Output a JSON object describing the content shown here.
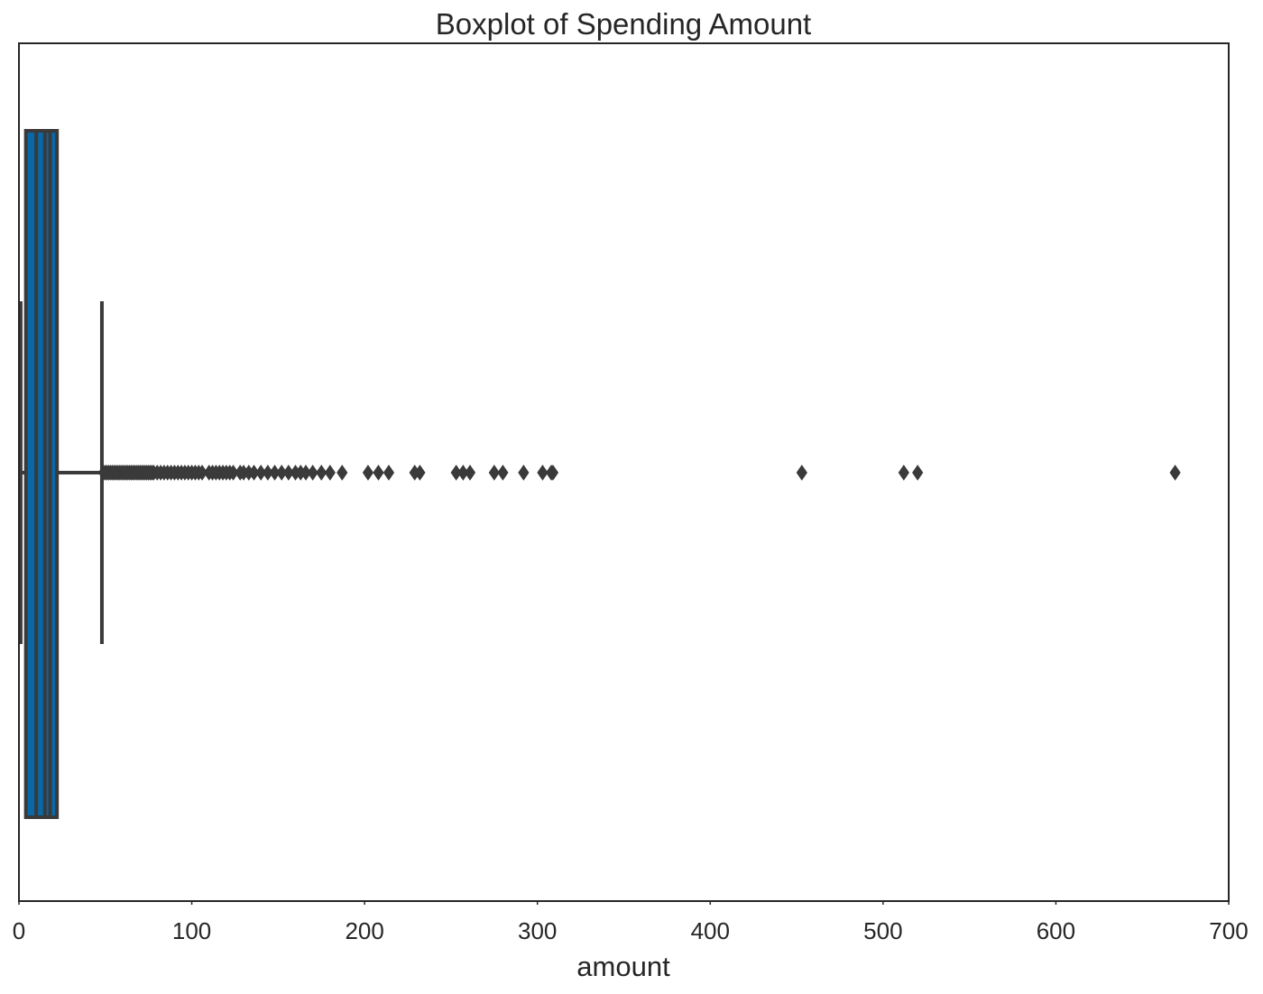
{
  "chart_data": {
    "type": "boxplot",
    "orientation": "horizontal",
    "title": "Boxplot of Spending Amount",
    "xlabel": "amount",
    "ylabel": "",
    "xlim": [
      0,
      700
    ],
    "xticks": [
      0,
      100,
      200,
      300,
      400,
      500,
      600,
      700
    ],
    "xtick_labels": [
      "0",
      "100",
      "200",
      "300",
      "400",
      "500",
      "600",
      "700"
    ],
    "grid": false,
    "box_color": "#0868a8",
    "line_color": "#3a3a3a",
    "box": {
      "min": 1,
      "q1": 4,
      "median": 15,
      "q3": 22,
      "whisker_low": 1,
      "whisker_high": 48,
      "inner_lines": [
        10,
        18
      ]
    },
    "outliers": [
      49,
      50,
      51,
      52,
      53,
      54,
      55,
      56,
      57,
      58,
      59,
      60,
      61,
      62,
      63,
      64,
      65,
      66,
      67,
      68,
      69,
      70,
      71,
      72,
      73,
      74,
      75,
      76,
      77,
      78,
      80,
      82,
      84,
      86,
      88,
      90,
      92,
      94,
      96,
      98,
      100,
      102,
      104,
      106,
      110,
      112,
      114,
      116,
      118,
      120,
      122,
      124,
      128,
      130,
      133,
      136,
      140,
      144,
      148,
      152,
      156,
      160,
      163,
      166,
      170,
      175,
      180,
      187,
      202,
      208,
      214,
      229,
      232,
      253,
      257,
      261,
      275,
      280,
      292,
      303,
      308,
      309,
      453,
      512,
      520,
      669
    ]
  }
}
